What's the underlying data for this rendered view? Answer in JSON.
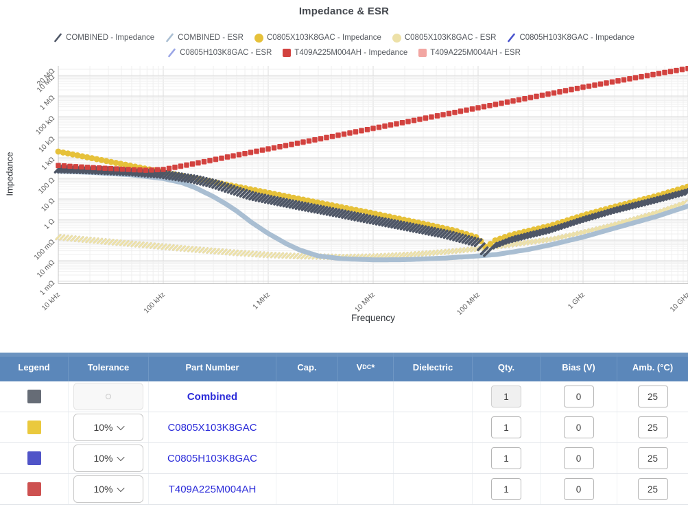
{
  "title": "Impedance & ESR",
  "chart_data": {
    "type": "line",
    "title": "Impedance & ESR",
    "xlabel": "Frequency",
    "ylabel": "Impedance",
    "x_scale": "log",
    "y_scale": "log",
    "x_range": [
      10000,
      10000000000
    ],
    "y_range": [
      0.001,
      27000000
    ],
    "grid": true,
    "legend_position": "top",
    "x_ticks": [
      [
        10000,
        "10 kHz"
      ],
      [
        100000,
        "100 kHz"
      ],
      [
        1000000,
        "1 MHz"
      ],
      [
        10000000,
        "10 MHz"
      ],
      [
        100000000,
        "100 MHz"
      ],
      [
        1000000000,
        "1 GHz"
      ],
      [
        10000000000,
        "10 GHz"
      ]
    ],
    "y_ticks": [
      [
        20000000,
        "20 MΩ"
      ],
      [
        10000000,
        "10 MΩ"
      ],
      [
        1000000,
        "1 MΩ"
      ],
      [
        100000,
        "100 kΩ"
      ],
      [
        10000,
        "10 kΩ"
      ],
      [
        1000,
        "1 kΩ"
      ],
      [
        100,
        "100 Ω"
      ],
      [
        10,
        "10 Ω"
      ],
      [
        1,
        "1 Ω"
      ],
      [
        0.1,
        "100 mΩ"
      ],
      [
        0.01,
        "10 mΩ"
      ],
      [
        0.001,
        "1 mΩ"
      ]
    ],
    "legend_rows": [
      [
        "COMBINED - Impedance",
        "COMBINED - ESR",
        "C0805X103K8GAC - Impedance",
        "C0805X103K8GAC - ESR",
        "C0805H103K8GAC - Impedance"
      ],
      [
        "C0805H103K8GAC - ESR",
        "T409A225M004AH - Impedance",
        "T409A225M004AH - ESR"
      ]
    ],
    "draw_order": [
      "T409A225M004AH - ESR",
      "C0805H103K8GAC - Impedance",
      "C0805H103K8GAC - ESR",
      "C0805X103K8GAC - ESR",
      "COMBINED - ESR",
      "C0805X103K8GAC - Impedance",
      "COMBINED - Impedance",
      "T409A225M004AH - Impedance"
    ],
    "series": [
      {
        "id": "combined-impedance",
        "name": "COMBINED - Impedance",
        "legend_marker": "slash",
        "color": "#4e5666",
        "curve": {
          "style": "slash",
          "len": 13,
          "w": 3.6,
          "gap": 4.5
        },
        "points": [
          [
            10000,
            280
          ],
          [
            20000,
            255
          ],
          [
            50000,
            205
          ],
          [
            100000,
            155
          ],
          [
            200000,
            90
          ],
          [
            300000,
            55
          ],
          [
            500000,
            24
          ],
          [
            700000,
            14
          ],
          [
            1000000,
            9.5
          ],
          [
            2000000,
            4.7
          ],
          [
            5000000,
            1.9
          ],
          [
            10000000,
            0.95
          ],
          [
            20000000,
            0.48
          ],
          [
            50000000,
            0.19
          ],
          [
            100000000,
            0.075
          ],
          [
            120000000,
            0.022
          ],
          [
            140000000,
            0.05
          ],
          [
            200000000,
            0.1
          ],
          [
            300000000,
            0.17
          ],
          [
            500000000,
            0.32
          ],
          [
            1000000000,
            1.0
          ],
          [
            2000000000,
            2.8
          ],
          [
            5000000000,
            9
          ],
          [
            10000000000,
            23
          ]
        ]
      },
      {
        "id": "combined-esr",
        "name": "COMBINED - ESR",
        "legend_marker": "slash",
        "color": "#a9bed2",
        "curve": {
          "style": "solid",
          "w": 7
        },
        "points": [
          [
            10000,
            225
          ],
          [
            20000,
            195
          ],
          [
            50000,
            148
          ],
          [
            100000,
            98
          ],
          [
            150000,
            62
          ],
          [
            200000,
            36
          ],
          [
            300000,
            13
          ],
          [
            400000,
            5.5
          ],
          [
            500000,
            2.6
          ],
          [
            700000,
            0.7
          ],
          [
            1000000,
            0.21
          ],
          [
            1500000,
            0.065
          ],
          [
            2000000,
            0.033
          ],
          [
            3000000,
            0.017
          ],
          [
            5000000,
            0.0125
          ],
          [
            10000000,
            0.011
          ],
          [
            20000000,
            0.0112
          ],
          [
            50000000,
            0.0135
          ],
          [
            100000000,
            0.017
          ],
          [
            150000000,
            0.02
          ],
          [
            300000000,
            0.035
          ],
          [
            500000000,
            0.06
          ],
          [
            1000000000,
            0.14
          ],
          [
            2000000000,
            0.38
          ],
          [
            5000000000,
            1.4
          ],
          [
            10000000000,
            4.5
          ]
        ]
      },
      {
        "id": "c0805x-impedance",
        "name": "C0805X103K8GAC - Impedance",
        "legend_marker": "circle",
        "color": "#e6c13a",
        "curve": {
          "style": "circle",
          "r": 4.5,
          "gap": 7
        },
        "points": [
          [
            10000,
            2000
          ],
          [
            100000,
            200
          ],
          [
            1000000,
            20
          ],
          [
            10000000,
            2
          ],
          [
            30000000,
            0.63
          ],
          [
            60000000,
            0.29
          ],
          [
            100000000,
            0.13
          ],
          [
            120000000,
            0.042
          ],
          [
            140000000,
            0.09
          ],
          [
            200000000,
            0.17
          ],
          [
            300000000,
            0.28
          ],
          [
            500000000,
            0.52
          ],
          [
            1000000000,
            1.6
          ],
          [
            2000000000,
            4.2
          ],
          [
            5000000000,
            14
          ],
          [
            10000000000,
            40
          ]
        ]
      },
      {
        "id": "c0805x-esr",
        "name": "C0805X103K8GAC - ESR",
        "legend_marker": "circle",
        "color": "#ede1a8",
        "curve": {
          "style": "slash",
          "len": 9,
          "w": 3,
          "gap": 5.5
        },
        "points": [
          [
            10000,
            0.14
          ],
          [
            20000,
            0.1
          ],
          [
            50000,
            0.066
          ],
          [
            100000,
            0.048
          ],
          [
            200000,
            0.035
          ],
          [
            500000,
            0.024
          ],
          [
            1000000,
            0.019
          ],
          [
            2000000,
            0.0165
          ],
          [
            5000000,
            0.015
          ],
          [
            10000000,
            0.016
          ],
          [
            20000000,
            0.019
          ],
          [
            50000000,
            0.027
          ],
          [
            100000000,
            0.038
          ],
          [
            120000000,
            0.043
          ],
          [
            200000000,
            0.058
          ],
          [
            500000000,
            0.11
          ],
          [
            1000000000,
            0.24
          ],
          [
            2000000000,
            0.58
          ],
          [
            5000000000,
            2.2
          ],
          [
            10000000000,
            7.5
          ]
        ]
      },
      {
        "id": "c0805h-impedance",
        "name": "C0805H103K8GAC - Impedance",
        "legend_marker": "slash",
        "color": "#4853cd",
        "curve": {
          "style": "circle",
          "r": 4,
          "gap": 7
        },
        "points": [
          [
            10000,
            2000
          ],
          [
            100000,
            200
          ],
          [
            1000000,
            20
          ],
          [
            10000000,
            2
          ],
          [
            30000000,
            0.63
          ],
          [
            60000000,
            0.29
          ],
          [
            100000000,
            0.13
          ],
          [
            120000000,
            0.042
          ],
          [
            140000000,
            0.09
          ],
          [
            200000000,
            0.17
          ],
          [
            300000000,
            0.28
          ],
          [
            500000000,
            0.52
          ],
          [
            1000000000,
            1.6
          ],
          [
            2000000000,
            4.2
          ],
          [
            5000000000,
            14
          ],
          [
            10000000000,
            40
          ]
        ]
      },
      {
        "id": "c0805h-esr",
        "name": "C0805H103K8GAC - ESR",
        "legend_marker": "slash",
        "color": "#9aa5e6",
        "curve": {
          "style": "slash",
          "len": 9,
          "w": 3,
          "gap": 5.5
        },
        "points": [
          [
            10000,
            0.14
          ],
          [
            20000,
            0.1
          ],
          [
            50000,
            0.066
          ],
          [
            100000,
            0.048
          ],
          [
            200000,
            0.035
          ],
          [
            500000,
            0.024
          ],
          [
            1000000,
            0.019
          ],
          [
            2000000,
            0.0165
          ],
          [
            5000000,
            0.015
          ],
          [
            10000000,
            0.016
          ],
          [
            20000000,
            0.019
          ],
          [
            50000000,
            0.027
          ],
          [
            100000000,
            0.038
          ],
          [
            120000000,
            0.043
          ],
          [
            200000000,
            0.058
          ],
          [
            500000000,
            0.11
          ],
          [
            1000000000,
            0.24
          ],
          [
            2000000000,
            0.58
          ],
          [
            5000000000,
            2.2
          ],
          [
            10000000000,
            7.5
          ]
        ]
      },
      {
        "id": "t409-impedance",
        "name": "T409A225M004AH - Impedance",
        "legend_marker": "square",
        "color": "#d2423f",
        "curve": {
          "style": "square",
          "s": 7.5,
          "gap": 8.5
        },
        "points": [
          [
            10000,
            420
          ],
          [
            20000,
            340
          ],
          [
            50000,
            265
          ],
          [
            70000,
            248
          ],
          [
            100000,
            272
          ],
          [
            200000,
            530
          ],
          [
            500000,
            1350
          ],
          [
            1000000,
            2700
          ],
          [
            10000000,
            27000
          ],
          [
            100000000,
            270000
          ],
          [
            1000000000,
            2700000
          ],
          [
            5000000000,
            12000000
          ],
          [
            10000000000,
            22000000
          ]
        ]
      },
      {
        "id": "t409-esr",
        "name": "T409A225M004AH - ESR",
        "legend_marker": "square",
        "color": "#f2a6a2",
        "curve": {
          "style": "square",
          "s": 7,
          "gap": 8.5
        },
        "points": [
          [
            10000,
            390
          ],
          [
            20000,
            316
          ],
          [
            50000,
            246
          ],
          [
            70000,
            231
          ],
          [
            100000,
            253
          ],
          [
            200000,
            493
          ],
          [
            500000,
            1256
          ],
          [
            1000000,
            2511
          ],
          [
            10000000,
            25110
          ],
          [
            100000000,
            251100
          ],
          [
            1000000000,
            2511000
          ],
          [
            5000000000,
            11160000
          ],
          [
            10000000000,
            20460000
          ]
        ]
      }
    ]
  },
  "table": {
    "headers": [
      "Legend",
      "Tolerance",
      "Part Number",
      "Cap.",
      "VDC*",
      "Dielectric",
      "Qty.",
      "Bias (V)",
      "Amb. (°C)"
    ],
    "vdc_parts": [
      "V",
      "DC",
      "*"
    ],
    "rows": [
      {
        "legend_color": "#666c76",
        "tolerance": "",
        "tolerance_disabled": true,
        "part_number": "Combined",
        "part_bold": true,
        "cap": "",
        "vdc": "",
        "dielectric": "",
        "qty": "1",
        "qty_disabled": true,
        "bias": "0",
        "amb": "25"
      },
      {
        "legend_color": "#eac93d",
        "tolerance": "10%",
        "tolerance_disabled": false,
        "part_number": "C0805X103K8GAC",
        "part_bold": false,
        "cap": "",
        "vdc": "",
        "dielectric": "",
        "qty": "1",
        "qty_disabled": false,
        "bias": "0",
        "amb": "25"
      },
      {
        "legend_color": "#5054c8",
        "tolerance": "10%",
        "tolerance_disabled": false,
        "part_number": "C0805H103K8GAC",
        "part_bold": false,
        "cap": "",
        "vdc": "",
        "dielectric": "",
        "qty": "1",
        "qty_disabled": false,
        "bias": "0",
        "amb": "25"
      },
      {
        "legend_color": "#cd5150",
        "tolerance": "10%",
        "tolerance_disabled": false,
        "part_number": "T409A225M004AH",
        "part_bold": false,
        "cap": "",
        "vdc": "",
        "dielectric": "",
        "qty": "1",
        "qty_disabled": false,
        "bias": "0",
        "amb": "25"
      }
    ]
  }
}
